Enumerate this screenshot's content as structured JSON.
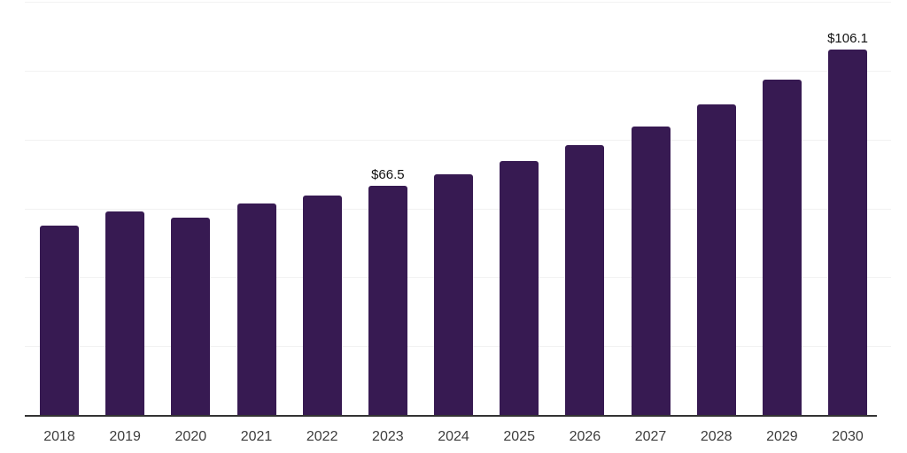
{
  "chart_data": {
    "type": "bar",
    "title": "",
    "xlabel": "",
    "ylabel": "",
    "categories": [
      "2018",
      "2019",
      "2020",
      "2021",
      "2022",
      "2023",
      "2024",
      "2025",
      "2026",
      "2027",
      "2028",
      "2029",
      "2030"
    ],
    "values": [
      54.9,
      59.0,
      57.4,
      61.3,
      63.7,
      66.5,
      70.0,
      73.8,
      78.5,
      83.8,
      90.1,
      97.5,
      106.1
    ],
    "data_labels": [
      "",
      "",
      "",
      "",
      "",
      "$66.5",
      "",
      "",
      "",
      "",
      "",
      "",
      "$106.1"
    ],
    "ylim": [
      0,
      120
    ],
    "gridline_step": 20,
    "grid": true,
    "legend": false,
    "bar_color": "#371A52",
    "axis_line_color": "#333333",
    "gridline_color": "#f2f2f2",
    "tick_label_color": "#3d3d3d",
    "data_label_color": "#111111"
  }
}
